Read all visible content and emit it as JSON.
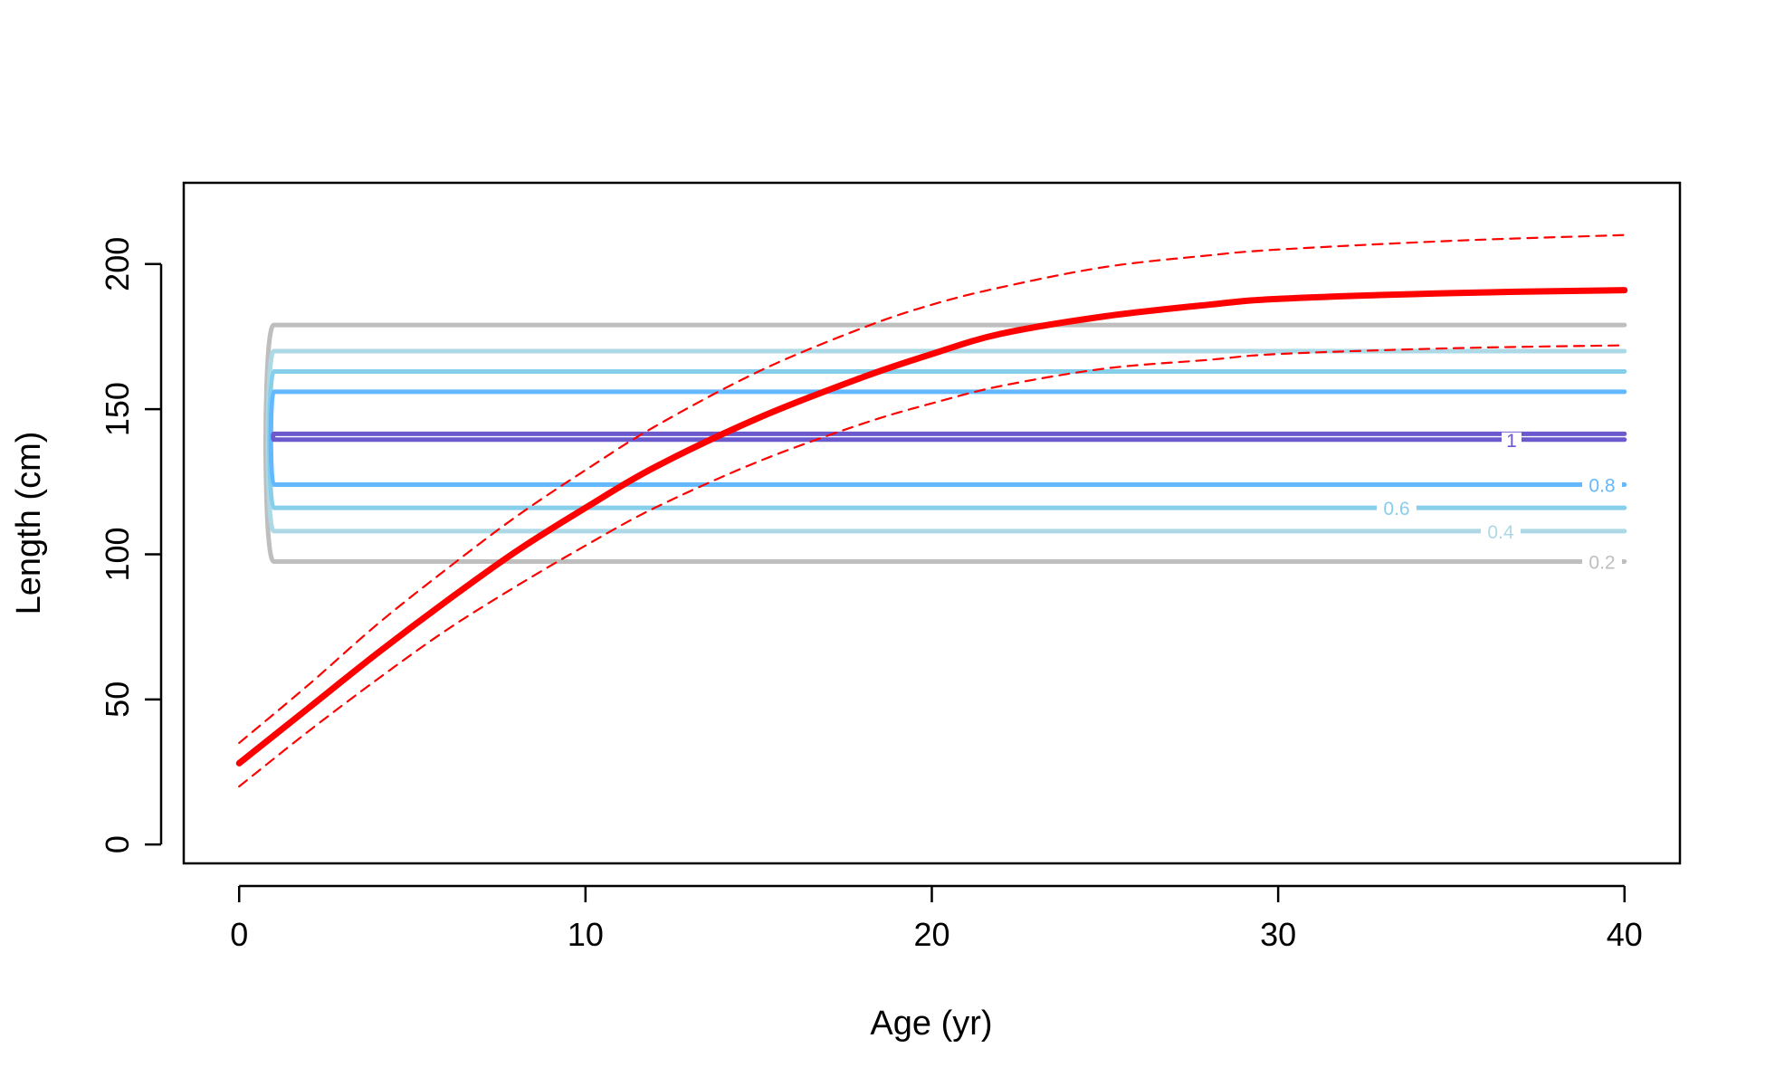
{
  "chart_data": {
    "type": "line",
    "title": "",
    "xlabel": "Age (yr)",
    "ylabel": "Length (cm)",
    "xlim": [
      -1.6,
      41.6
    ],
    "ylim": [
      -6.5,
      228
    ],
    "xticks": [
      0,
      10,
      20,
      30,
      40
    ],
    "yticks": [
      0,
      50,
      100,
      150,
      200
    ],
    "grid": false,
    "legend": "none",
    "series": [
      {
        "color": "#ff0000",
        "style": "solid-thick",
        "x": [
          0,
          2,
          4,
          6,
          8,
          10,
          12,
          15,
          18,
          20,
          22,
          25,
          28,
          30,
          35,
          40
        ],
        "y": [
          28,
          47,
          66,
          84,
          101,
          116,
          130,
          147,
          161,
          169,
          176,
          182,
          186,
          188,
          190,
          191
        ]
      },
      {
        "color": "#ff0000",
        "style": "dashed",
        "x": [
          0,
          2,
          4,
          6,
          8,
          10,
          12,
          15,
          18,
          20,
          22,
          25,
          28,
          30,
          35,
          40
        ],
        "y": [
          35,
          55,
          76,
          95,
          113,
          129,
          144,
          163,
          178,
          186,
          192,
          199,
          203,
          205,
          208,
          210
        ]
      },
      {
        "color": "#ff0000",
        "style": "dashed",
        "x": [
          0,
          2,
          4,
          6,
          8,
          10,
          12,
          15,
          18,
          20,
          22,
          25,
          28,
          30,
          35,
          40
        ],
        "y": [
          20,
          39,
          57,
          74,
          89,
          103,
          116,
          132,
          145,
          152,
          158,
          164,
          167,
          169,
          171,
          172
        ]
      }
    ],
    "contours": [
      {
        "level": "0.2",
        "color": "#bebebe",
        "y_top": 179,
        "y_bottom": 97.5,
        "x_start": 1,
        "x_end": 40,
        "bulge": 9
      },
      {
        "level": "0.4",
        "color": "#add8e6",
        "y_top": 170,
        "y_bottom": 108,
        "x_start": 1,
        "x_end": 40,
        "bulge": 6.5
      },
      {
        "level": "0.6",
        "color": "#87ceeb",
        "y_top": 163,
        "y_bottom": 116,
        "x_start": 1,
        "x_end": 40,
        "bulge": 4.8
      },
      {
        "level": "0.8",
        "color": "#63b8ff",
        "y_top": 156,
        "y_bottom": 124,
        "x_start": 1,
        "x_end": 40,
        "bulge": 3.2
      },
      {
        "level": "1",
        "color": "#6a5acd",
        "y_top": 141.5,
        "y_bottom": 139.5,
        "x_start": 1,
        "x_end": 40,
        "bulge": 0.8
      }
    ]
  }
}
